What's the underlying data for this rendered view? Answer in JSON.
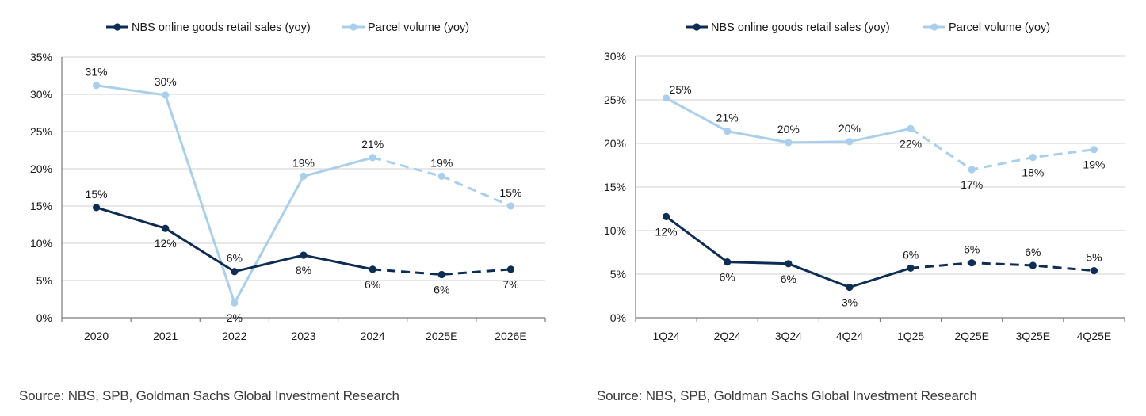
{
  "colors": {
    "dark": "#0d2d54",
    "light": "#a9cfec",
    "grid": "#d9d9d9",
    "axis": "#7a7a7a"
  },
  "source": "Source: NBS, SPB, Goldman Sachs Global Investment Research",
  "chart_data": [
    {
      "type": "line",
      "categories": [
        "2020",
        "2021",
        "2022",
        "2023",
        "2024",
        "2025E",
        "2026E"
      ],
      "ylim": [
        0,
        35
      ],
      "yticks": [
        0,
        5,
        10,
        15,
        20,
        25,
        30,
        35
      ],
      "ytick_labels": [
        "0%",
        "5%",
        "10%",
        "15%",
        "20%",
        "25%",
        "30%",
        "35%"
      ],
      "grid": true,
      "legend": "top-center",
      "projected_from_index": 4,
      "series": [
        {
          "name": "NBS online goods retail sales (yoy)",
          "color": "#0d2d54",
          "values": [
            14.8,
            12.0,
            6.2,
            8.4,
            6.5,
            5.8,
            6.5
          ],
          "labels": [
            "15%",
            "12%",
            "6%",
            "8%",
            "6%",
            "6%",
            "7%"
          ],
          "label_pos": [
            "above",
            "below",
            "above",
            "below",
            "below",
            "below",
            "below"
          ]
        },
        {
          "name": "Parcel volume (yoy)",
          "color": "#a9cfec",
          "values": [
            31.2,
            29.9,
            2.0,
            19.0,
            21.5,
            19.0,
            15.0
          ],
          "labels": [
            "31%",
            "30%",
            "2%",
            "19%",
            "21%",
            "19%",
            "15%"
          ],
          "label_pos": [
            "above",
            "above",
            "below",
            "above",
            "above",
            "above",
            "above"
          ]
        }
      ]
    },
    {
      "type": "line",
      "categories": [
        "1Q24",
        "2Q24",
        "3Q24",
        "4Q24",
        "1Q25",
        "2Q25E",
        "3Q25E",
        "4Q25E"
      ],
      "ylim": [
        0,
        30
      ],
      "yticks": [
        0,
        5,
        10,
        15,
        20,
        25,
        30
      ],
      "ytick_labels": [
        "0%",
        "5%",
        "10%",
        "15%",
        "20%",
        "25%",
        "30%"
      ],
      "grid": true,
      "legend": "top-center",
      "projected_from_index": 4,
      "series": [
        {
          "name": "NBS online goods retail sales (yoy)",
          "color": "#0d2d54",
          "values": [
            11.6,
            6.4,
            6.2,
            3.5,
            5.7,
            6.3,
            6.0,
            5.4
          ],
          "labels": [
            "12%",
            "6%",
            "6%",
            "3%",
            "6%",
            "6%",
            "6%",
            "5%"
          ],
          "label_pos": [
            "below",
            "below",
            "below",
            "below",
            "above",
            "above",
            "above",
            "above"
          ]
        },
        {
          "name": "Parcel volume (yoy)",
          "color": "#a9cfec",
          "values": [
            25.2,
            21.4,
            20.1,
            20.2,
            21.7,
            17.0,
            18.4,
            19.3
          ],
          "labels": [
            "25%",
            "21%",
            "20%",
            "20%",
            "22%",
            "17%",
            "18%",
            "19%"
          ],
          "label_pos": [
            "above-right",
            "above",
            "above",
            "above",
            "below",
            "below",
            "below",
            "below"
          ]
        }
      ]
    }
  ]
}
